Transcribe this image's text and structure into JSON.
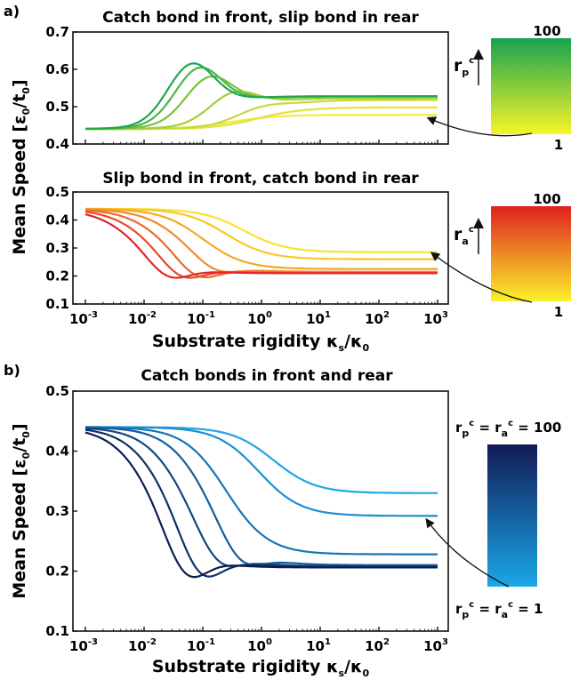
{
  "panel_labels": [
    "a)",
    "b)"
  ],
  "x_label": {
    "main": "Substrate rigidity ",
    "kappa": "κ",
    "sub_s": "s",
    "slash": "/",
    "sub_0": "0"
  },
  "y_label": {
    "main": "Mean Speed [",
    "eps": "ε",
    "slash": "/t",
    "close": "]",
    "sub0": "0"
  },
  "x_ticks": [
    {
      "base": "10",
      "exp": "-3"
    },
    {
      "base": "10",
      "exp": "-2"
    },
    {
      "base": "10",
      "exp": "-1"
    },
    {
      "base": "10",
      "exp": "0"
    },
    {
      "base": "10",
      "exp": "1"
    },
    {
      "base": "10",
      "exp": "2"
    },
    {
      "base": "10",
      "exp": "3"
    }
  ],
  "colorbars": [
    {
      "top": "100",
      "bottom": "1",
      "label_r": "r",
      "label_sub": "p",
      "label_sup": "c",
      "colors": [
        "#17a34f",
        "#f7f42a"
      ]
    },
    {
      "top": "100",
      "bottom": "1",
      "label_r": "r",
      "label_sub": "a",
      "label_sup": "c",
      "colors": [
        "#e02020",
        "#fbf12a"
      ]
    },
    {
      "top_text": {
        "r1": "r",
        "s1": "p",
        "c1": "c",
        "eq": " = ",
        "r2": "r",
        "s2": "a",
        "c2": "c",
        "tail": " = 100"
      },
      "bottom_text": {
        "r1": "r",
        "s1": "p",
        "c1": "c",
        "eq": " = ",
        "r2": "r",
        "s2": "a",
        "c2": "c",
        "tail": " = 1"
      },
      "colors": [
        "#121a55",
        "#1aa7e8"
      ]
    }
  ],
  "chart_data": [
    {
      "type": "line",
      "title": "Catch bond in front, slip bond in rear",
      "x_scale": "log",
      "xlim": [
        0.001,
        1000
      ],
      "ylim": [
        0.4,
        0.7
      ],
      "y_ticks": [
        "0.4",
        "0.5",
        "0.6",
        "0.7"
      ],
      "grid": false,
      "series": [
        {
          "color": "#f5e940",
          "y_start": 0.44,
          "peak": 0.44,
          "peak_x": 0.3,
          "y_end": 0.478
        },
        {
          "color": "#e2e23e",
          "y_start": 0.44,
          "peak": 0.5,
          "peak_x": 1.0,
          "y_end": 0.498
        },
        {
          "color": "#c8d93a",
          "y_start": 0.44,
          "peak": 0.535,
          "peak_x": 0.8,
          "y_end": 0.518
        },
        {
          "color": "#a3cf39",
          "y_start": 0.44,
          "peak": 0.578,
          "peak_x": 0.3,
          "y_end": 0.523
        },
        {
          "color": "#7ac23a",
          "y_start": 0.44,
          "peak": 0.622,
          "peak_x": 0.12,
          "y_end": 0.527
        },
        {
          "color": "#4db548",
          "y_start": 0.44,
          "peak": 0.647,
          "peak_x": 0.08,
          "y_end": 0.528
        },
        {
          "color": "#1fa64d",
          "y_start": 0.44,
          "peak": 0.658,
          "peak_x": 0.06,
          "y_end": 0.528
        }
      ]
    },
    {
      "type": "line",
      "title": "Slip bond in front, catch bond in rear",
      "x_scale": "log",
      "xlim": [
        0.001,
        1000
      ],
      "ylim": [
        0.1,
        0.5
      ],
      "y_ticks": [
        "0.1",
        "0.2",
        "0.3",
        "0.4",
        "0.5"
      ],
      "grid": false,
      "series": [
        {
          "color": "#f8e22f",
          "y_start": 0.44,
          "y_end": 0.285,
          "mid_x": 0.5
        },
        {
          "color": "#f6c829",
          "y_start": 0.44,
          "y_end": 0.26,
          "mid_x": 0.25
        },
        {
          "color": "#f4a82a",
          "y_start": 0.44,
          "y_end": 0.225,
          "mid_x": 0.1
        },
        {
          "color": "#f08a2c",
          "y_start": 0.44,
          "y_end": 0.215,
          "mid_x": 0.045
        },
        {
          "color": "#ec6a2c",
          "y_start": 0.44,
          "y_end": 0.212,
          "mid_x": 0.022
        },
        {
          "color": "#e84a2b",
          "y_start": 0.44,
          "y_end": 0.21,
          "mid_x": 0.012
        },
        {
          "color": "#e2262a",
          "y_start": 0.44,
          "y_end": 0.21,
          "mid_x": 0.007
        }
      ]
    },
    {
      "type": "line",
      "title": "Catch bonds in front and rear",
      "x_scale": "log",
      "xlim": [
        0.001,
        1000
      ],
      "ylim": [
        0.1,
        0.5
      ],
      "y_ticks": [
        "0.1",
        "0.2",
        "0.3",
        "0.4",
        "0.5"
      ],
      "grid": false,
      "series": [
        {
          "color": "#1fa6e6",
          "y_start": 0.44,
          "y_end": 0.33,
          "mid_x": 1.6
        },
        {
          "color": "#1a8fd2",
          "y_start": 0.44,
          "y_end": 0.292,
          "mid_x": 0.9
        },
        {
          "color": "#1676b8",
          "y_start": 0.44,
          "y_end": 0.228,
          "mid_x": 0.25
        },
        {
          "color": "#135e9e",
          "y_start": 0.44,
          "y_end": 0.21,
          "mid_x": 0.12
        },
        {
          "color": "#104783",
          "y_start": 0.44,
          "y_end": 0.208,
          "mid_x": 0.05
        },
        {
          "color": "#0e3169",
          "y_start": 0.44,
          "y_end": 0.207,
          "mid_x": 0.025
        },
        {
          "color": "#0f1c52",
          "y_start": 0.44,
          "y_end": 0.206,
          "mid_x": 0.014
        }
      ]
    }
  ]
}
